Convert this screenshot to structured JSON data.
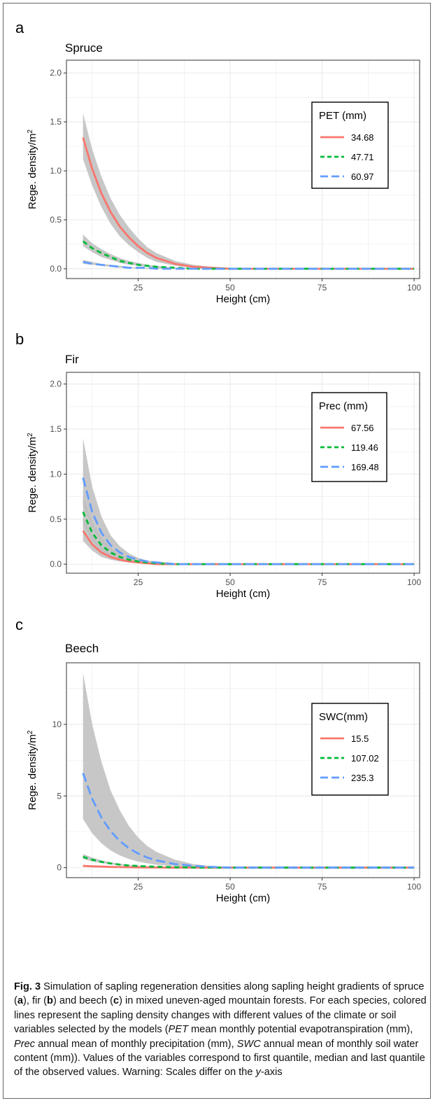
{
  "caption": {
    "label": "Fig. 3",
    "html": "Simulation of sapling regeneration densities along sapling height gradients of spruce (<b>a</b>), fir (<b>b</b>) and beech (<b>c</b>) in mixed uneven-aged mountain forests. For each species, colored lines represent the sapling density changes with different values of the climate or soil variables selected by the models (<i>PET</i> mean monthly potential evapotranspiration (mm), <i>Prec</i> annual mean of monthly precipitation (mm), <i>SWC</i> annual mean of monthly soil water content (mm)). Values of the variables correspond to first quantile, median and last quantile of the observed values. Warning: Scales differ on the <i>y</i>-axis"
  },
  "colors": {
    "red": "#F8766D",
    "green": "#00BA38",
    "blue": "#619CFF",
    "ribbon": "#BDBDBD",
    "grid": "#EBEBEB"
  },
  "chart_data": [
    {
      "panel": "a",
      "type": "line",
      "title": "Spruce",
      "xlabel": "Height (cm)",
      "ylabel": "Rege. density/m",
      "ylabel_sup": "2",
      "xlim": [
        5.5,
        101.5
      ],
      "ylim": [
        -0.1,
        2.13
      ],
      "xticks": [
        25,
        50,
        75,
        100
      ],
      "yticks": [
        0.0,
        0.5,
        1.0,
        1.5,
        2.0
      ],
      "ytick_labels": [
        "0.0",
        "0.5",
        "1.0",
        "1.5",
        "2.0"
      ],
      "grid": true,
      "legend": {
        "title": "PET (mm)",
        "placement": "top-right"
      },
      "x": [
        10,
        12.5,
        15,
        17.5,
        20,
        22.5,
        25,
        27.5,
        30,
        35,
        40,
        45,
        50,
        60,
        70,
        80,
        90,
        100
      ],
      "series": [
        {
          "name": "34.68",
          "color": "red",
          "dash": "solid",
          "values": [
            1.34,
            1.02,
            0.77,
            0.58,
            0.43,
            0.32,
            0.23,
            0.16,
            0.11,
            0.05,
            0.02,
            0.01,
            0.0,
            0.0,
            0.0,
            0.0,
            0.0,
            0.0
          ],
          "lower": [
            1.12,
            0.85,
            0.63,
            0.46,
            0.33,
            0.24,
            0.17,
            0.11,
            0.07,
            0.03,
            0.01,
            0.0,
            0.0,
            0.0,
            0.0,
            0.0,
            0.0,
            0.0
          ],
          "upper": [
            1.59,
            1.22,
            0.94,
            0.72,
            0.55,
            0.42,
            0.31,
            0.22,
            0.16,
            0.08,
            0.04,
            0.02,
            0.01,
            0.0,
            0.0,
            0.0,
            0.0,
            0.0
          ]
        },
        {
          "name": "47.71",
          "color": "green",
          "dash": "dash",
          "values": [
            0.28,
            0.21,
            0.16,
            0.12,
            0.08,
            0.06,
            0.04,
            0.03,
            0.02,
            0.01,
            0.0,
            0.0,
            0.0,
            0.0,
            0.0,
            0.0,
            0.0,
            0.0
          ],
          "lower": [
            0.23,
            0.17,
            0.12,
            0.09,
            0.06,
            0.04,
            0.03,
            0.02,
            0.01,
            0.0,
            0.0,
            0.0,
            0.0,
            0.0,
            0.0,
            0.0,
            0.0,
            0.0
          ],
          "upper": [
            0.35,
            0.26,
            0.2,
            0.15,
            0.11,
            0.08,
            0.06,
            0.04,
            0.03,
            0.01,
            0.01,
            0.0,
            0.0,
            0.0,
            0.0,
            0.0,
            0.0,
            0.0
          ]
        },
        {
          "name": "60.97",
          "color": "blue",
          "dash": "longdash",
          "values": [
            0.07,
            0.05,
            0.04,
            0.03,
            0.02,
            0.01,
            0.01,
            0.01,
            0.0,
            0.0,
            0.0,
            0.0,
            0.0,
            0.0,
            0.0,
            0.0,
            0.0,
            0.0
          ],
          "lower": [
            0.05,
            0.04,
            0.03,
            0.02,
            0.01,
            0.01,
            0.0,
            0.0,
            0.0,
            0.0,
            0.0,
            0.0,
            0.0,
            0.0,
            0.0,
            0.0,
            0.0,
            0.0
          ],
          "upper": [
            0.09,
            0.07,
            0.05,
            0.04,
            0.03,
            0.02,
            0.01,
            0.01,
            0.01,
            0.0,
            0.0,
            0.0,
            0.0,
            0.0,
            0.0,
            0.0,
            0.0,
            0.0
          ]
        }
      ]
    },
    {
      "panel": "b",
      "type": "line",
      "title": "Fir",
      "xlabel": "Height (cm)",
      "ylabel": "Rege. density/m",
      "ylabel_sup": "2",
      "xlim": [
        5.5,
        101.5
      ],
      "ylim": [
        -0.1,
        2.13
      ],
      "xticks": [
        25,
        50,
        75,
        100
      ],
      "yticks": [
        0.0,
        0.5,
        1.0,
        1.5,
        2.0
      ],
      "ytick_labels": [
        "0.0",
        "0.5",
        "1.0",
        "1.5",
        "2.0"
      ],
      "grid": true,
      "legend": {
        "title": "Prec (mm)",
        "placement": "top-right"
      },
      "x": [
        10,
        12.5,
        15,
        17.5,
        20,
        22.5,
        25,
        27.5,
        30,
        35,
        40,
        50,
        60,
        70,
        80,
        90,
        100
      ],
      "series": [
        {
          "name": "67.56",
          "color": "red",
          "dash": "solid",
          "values": [
            0.37,
            0.22,
            0.13,
            0.08,
            0.05,
            0.03,
            0.02,
            0.01,
            0.0,
            0.0,
            0.0,
            0.0,
            0.0,
            0.0,
            0.0,
            0.0,
            0.0
          ],
          "lower": [
            0.26,
            0.15,
            0.08,
            0.05,
            0.03,
            0.02,
            0.01,
            0.0,
            0.0,
            0.0,
            0.0,
            0.0,
            0.0,
            0.0,
            0.0,
            0.0,
            0.0
          ],
          "upper": [
            0.52,
            0.32,
            0.19,
            0.12,
            0.07,
            0.04,
            0.03,
            0.01,
            0.01,
            0.0,
            0.0,
            0.0,
            0.0,
            0.0,
            0.0,
            0.0,
            0.0
          ]
        },
        {
          "name": "119.46",
          "color": "green",
          "dash": "dash",
          "values": [
            0.58,
            0.35,
            0.21,
            0.13,
            0.08,
            0.05,
            0.03,
            0.02,
            0.01,
            0.0,
            0.0,
            0.0,
            0.0,
            0.0,
            0.0,
            0.0,
            0.0
          ],
          "lower": [
            0.44,
            0.26,
            0.15,
            0.09,
            0.05,
            0.03,
            0.02,
            0.01,
            0.0,
            0.0,
            0.0,
            0.0,
            0.0,
            0.0,
            0.0,
            0.0,
            0.0
          ],
          "upper": [
            0.76,
            0.47,
            0.29,
            0.18,
            0.11,
            0.07,
            0.04,
            0.02,
            0.01,
            0.0,
            0.0,
            0.0,
            0.0,
            0.0,
            0.0,
            0.0,
            0.0
          ]
        },
        {
          "name": "169.48",
          "color": "blue",
          "dash": "longdash",
          "values": [
            0.96,
            0.58,
            0.35,
            0.21,
            0.13,
            0.08,
            0.05,
            0.03,
            0.02,
            0.0,
            0.0,
            0.0,
            0.0,
            0.0,
            0.0,
            0.0,
            0.0
          ],
          "lower": [
            0.66,
            0.4,
            0.24,
            0.14,
            0.08,
            0.05,
            0.03,
            0.02,
            0.01,
            0.0,
            0.0,
            0.0,
            0.0,
            0.0,
            0.0,
            0.0,
            0.0
          ],
          "upper": [
            1.4,
            0.86,
            0.53,
            0.32,
            0.2,
            0.12,
            0.07,
            0.04,
            0.03,
            0.01,
            0.0,
            0.0,
            0.0,
            0.0,
            0.0,
            0.0,
            0.0
          ]
        }
      ]
    },
    {
      "panel": "c",
      "type": "line",
      "title": "Beech",
      "xlabel": "Height (cm)",
      "ylabel": "Rege. density/m",
      "ylabel_sup": "2",
      "xlim": [
        5.5,
        101.5
      ],
      "ylim": [
        -0.7,
        14.3
      ],
      "xticks": [
        25,
        50,
        75,
        100
      ],
      "yticks": [
        0,
        5,
        10
      ],
      "ytick_labels": [
        "0",
        "5",
        "10"
      ],
      "grid": true,
      "legend": {
        "title": "SWC(mm)",
        "placement": "top-right"
      },
      "x": [
        10,
        12.5,
        15,
        17.5,
        20,
        22.5,
        25,
        27.5,
        30,
        35,
        40,
        45,
        50,
        60,
        70,
        80,
        90,
        100
      ],
      "series": [
        {
          "name": "15.5",
          "color": "red",
          "dash": "solid",
          "values": [
            0.12,
            0.09,
            0.07,
            0.05,
            0.04,
            0.03,
            0.02,
            0.01,
            0.01,
            0.0,
            0.0,
            0.0,
            0.0,
            0.0,
            0.0,
            0.0,
            0.0,
            0.0
          ],
          "lower": [
            0.07,
            0.05,
            0.04,
            0.03,
            0.02,
            0.01,
            0.01,
            0.0,
            0.0,
            0.0,
            0.0,
            0.0,
            0.0,
            0.0,
            0.0,
            0.0,
            0.0,
            0.0
          ],
          "upper": [
            0.2,
            0.15,
            0.11,
            0.08,
            0.06,
            0.04,
            0.03,
            0.02,
            0.01,
            0.0,
            0.0,
            0.0,
            0.0,
            0.0,
            0.0,
            0.0,
            0.0,
            0.0
          ]
        },
        {
          "name": "107.02",
          "color": "green",
          "dash": "dash",
          "values": [
            0.75,
            0.55,
            0.4,
            0.29,
            0.21,
            0.15,
            0.11,
            0.08,
            0.06,
            0.03,
            0.01,
            0.0,
            0.0,
            0.0,
            0.0,
            0.0,
            0.0,
            0.0
          ],
          "lower": [
            0.6,
            0.44,
            0.32,
            0.23,
            0.16,
            0.11,
            0.08,
            0.06,
            0.04,
            0.02,
            0.0,
            0.0,
            0.0,
            0.0,
            0.0,
            0.0,
            0.0,
            0.0
          ],
          "upper": [
            0.95,
            0.7,
            0.51,
            0.37,
            0.27,
            0.2,
            0.14,
            0.1,
            0.07,
            0.04,
            0.02,
            0.0,
            0.0,
            0.0,
            0.0,
            0.0,
            0.0,
            0.0
          ]
        },
        {
          "name": "235.3",
          "color": "blue",
          "dash": "longdash",
          "values": [
            6.6,
            4.8,
            3.5,
            2.55,
            1.85,
            1.35,
            0.98,
            0.7,
            0.5,
            0.25,
            0.12,
            0.05,
            0.0,
            0.0,
            0.0,
            0.0,
            0.0,
            0.0
          ],
          "lower": [
            3.4,
            2.4,
            1.7,
            1.2,
            0.85,
            0.6,
            0.42,
            0.3,
            0.2,
            0.1,
            0.04,
            0.0,
            0.0,
            0.0,
            0.0,
            0.0,
            0.0,
            0.0
          ],
          "upper": [
            13.6,
            10.0,
            7.4,
            5.4,
            4.0,
            2.9,
            2.1,
            1.5,
            1.1,
            0.55,
            0.25,
            0.1,
            0.0,
            0.0,
            0.0,
            0.0,
            0.0,
            0.0
          ]
        }
      ]
    }
  ]
}
